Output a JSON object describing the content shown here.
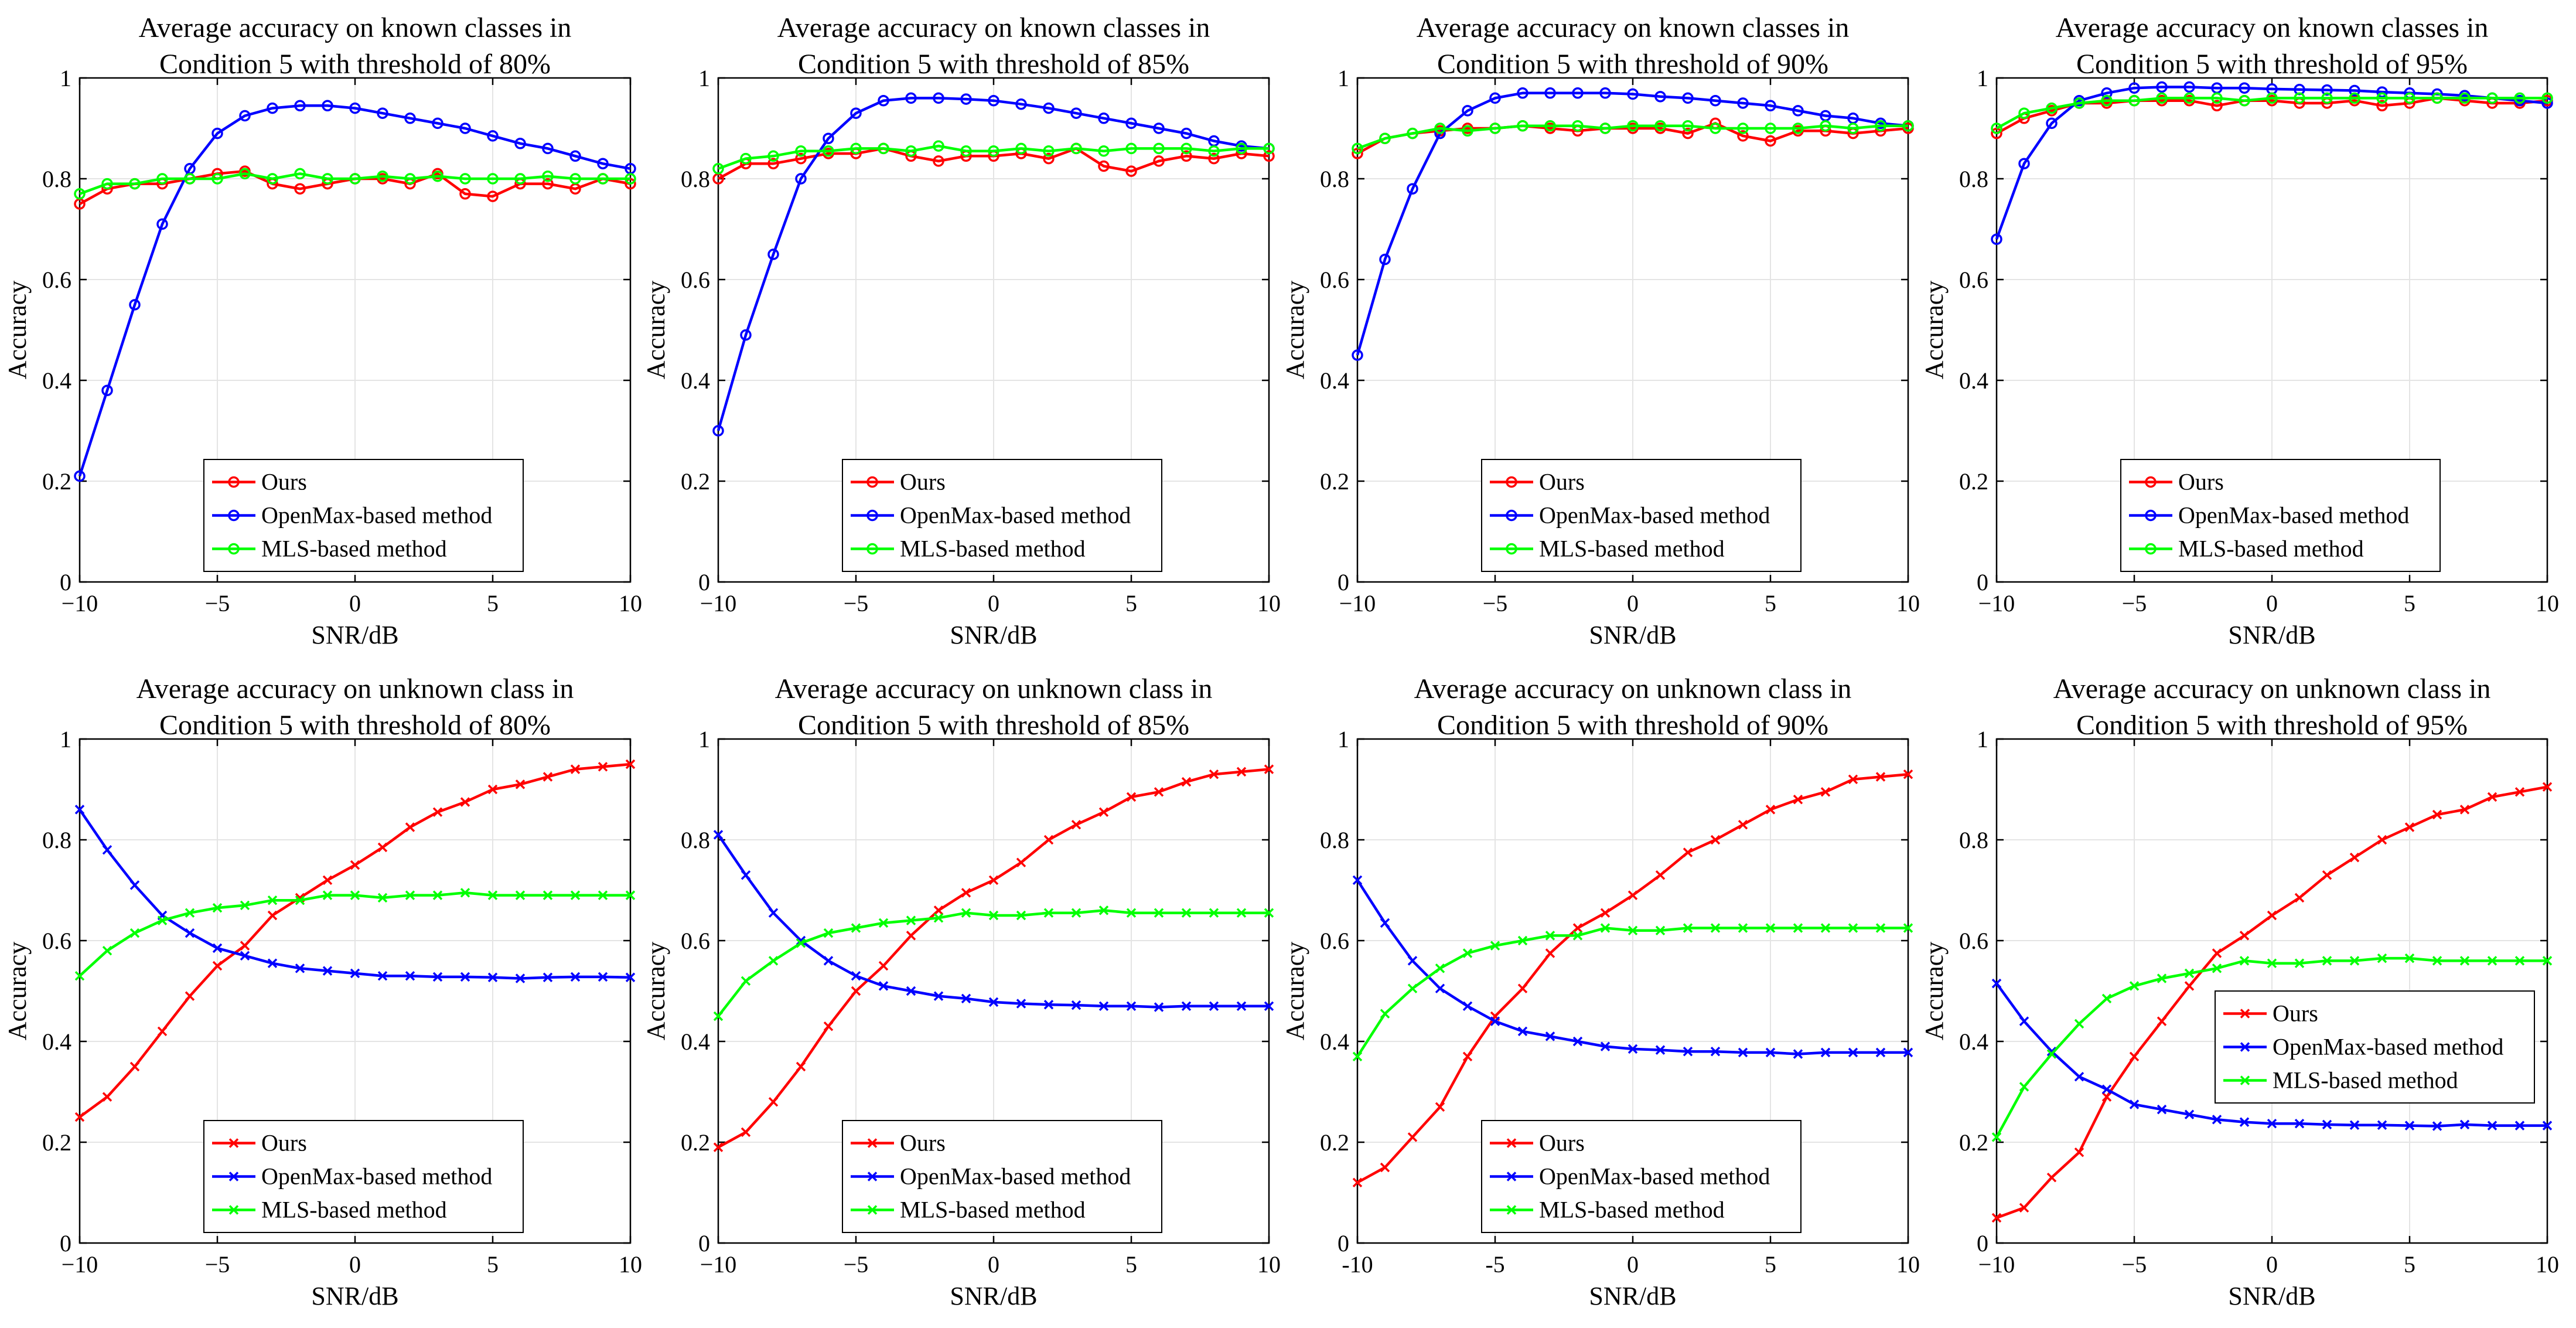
{
  "colors": {
    "ours": "#ff0000",
    "openmax": "#0000ff",
    "mls": "#00ff00",
    "grid": "#e4e4e4",
    "axis": "#000000"
  },
  "chart_data": [
    {
      "type": "line",
      "row": 0,
      "col": 0,
      "marker": "circle",
      "title": [
        "Average accuracy on known classes in",
        "Condition 5 with threshold of 80%"
      ],
      "xlabel": "SNR/dB",
      "ylabel": "Accuracy",
      "xlim": [
        -10,
        10
      ],
      "ylim": [
        0,
        1
      ],
      "grid": true,
      "legend": "bottom-center",
      "xticks": [
        "−10",
        "−5",
        "0",
        "5",
        "10"
      ],
      "yticks": [
        "0",
        "0.2",
        "0.4",
        "0.6",
        "0.8",
        "1"
      ],
      "x": [
        -10,
        -9,
        -8,
        -7,
        -6,
        -5,
        -4,
        -3,
        -2,
        -1,
        0,
        1,
        2,
        3,
        4,
        5,
        6,
        7,
        8,
        9,
        10
      ],
      "series": [
        {
          "name": "Ours",
          "color": "#ff0000",
          "values": [
            0.75,
            0.78,
            0.79,
            0.79,
            0.8,
            0.81,
            0.815,
            0.79,
            0.78,
            0.79,
            0.8,
            0.8,
            0.79,
            0.81,
            0.77,
            0.765,
            0.79,
            0.79,
            0.78,
            0.8,
            0.79
          ]
        },
        {
          "name": "OpenMax-based method",
          "color": "#0000ff",
          "values": [
            0.21,
            0.38,
            0.55,
            0.71,
            0.82,
            0.89,
            0.925,
            0.94,
            0.945,
            0.945,
            0.94,
            0.93,
            0.92,
            0.91,
            0.9,
            0.885,
            0.87,
            0.86,
            0.845,
            0.83,
            0.82
          ]
        },
        {
          "name": "MLS-based method",
          "color": "#00ff00",
          "values": [
            0.77,
            0.79,
            0.79,
            0.8,
            0.8,
            0.8,
            0.81,
            0.8,
            0.81,
            0.8,
            0.8,
            0.805,
            0.8,
            0.805,
            0.8,
            0.8,
            0.8,
            0.805,
            0.8,
            0.8,
            0.8
          ]
        }
      ]
    },
    {
      "type": "line",
      "row": 0,
      "col": 1,
      "marker": "circle",
      "title": [
        "Average accuracy on known classes in",
        "Condition 5 with threshold of 85%"
      ],
      "xlabel": "SNR/dB",
      "ylabel": "Accuracy",
      "xlim": [
        -10,
        10
      ],
      "ylim": [
        0,
        1
      ],
      "grid": true,
      "legend": "bottom-center",
      "xticks": [
        "−10",
        "−5",
        "0",
        "5",
        "10"
      ],
      "yticks": [
        "0",
        "0.2",
        "0.4",
        "0.6",
        "0.8",
        "1"
      ],
      "x": [
        -10,
        -9,
        -8,
        -7,
        -6,
        -5,
        -4,
        -3,
        -2,
        -1,
        0,
        1,
        2,
        3,
        4,
        5,
        6,
        7,
        8,
        9,
        10
      ],
      "series": [
        {
          "name": "Ours",
          "color": "#ff0000",
          "values": [
            0.8,
            0.83,
            0.83,
            0.84,
            0.85,
            0.85,
            0.86,
            0.845,
            0.835,
            0.845,
            0.845,
            0.85,
            0.84,
            0.86,
            0.825,
            0.815,
            0.835,
            0.845,
            0.84,
            0.85,
            0.845
          ]
        },
        {
          "name": "OpenMax-based method",
          "color": "#0000ff",
          "values": [
            0.3,
            0.49,
            0.65,
            0.8,
            0.88,
            0.93,
            0.955,
            0.96,
            0.96,
            0.958,
            0.955,
            0.948,
            0.94,
            0.93,
            0.92,
            0.91,
            0.9,
            0.89,
            0.875,
            0.865,
            0.86
          ]
        },
        {
          "name": "MLS-based method",
          "color": "#00ff00",
          "values": [
            0.82,
            0.84,
            0.845,
            0.855,
            0.855,
            0.86,
            0.86,
            0.855,
            0.865,
            0.855,
            0.855,
            0.86,
            0.855,
            0.86,
            0.855,
            0.86,
            0.86,
            0.86,
            0.855,
            0.86,
            0.86
          ]
        }
      ]
    },
    {
      "type": "line",
      "row": 0,
      "col": 2,
      "marker": "circle",
      "title": [
        "Average accuracy on known classes in",
        "Condition 5 with threshold of 90%"
      ],
      "xlabel": "SNR/dB",
      "ylabel": "Accuracy",
      "xlim": [
        -10,
        10
      ],
      "ylim": [
        0,
        1
      ],
      "grid": true,
      "legend": "bottom-center",
      "xticks": [
        "−10",
        "−5",
        "0",
        "5",
        "10"
      ],
      "yticks": [
        "0",
        "0.2",
        "0.4",
        "0.6",
        "0.8",
        "1"
      ],
      "x": [
        -10,
        -9,
        -8,
        -7,
        -6,
        -5,
        -4,
        -3,
        -2,
        -1,
        0,
        1,
        2,
        3,
        4,
        5,
        6,
        7,
        8,
        9,
        10
      ],
      "series": [
        {
          "name": "Ours",
          "color": "#ff0000",
          "values": [
            0.85,
            0.88,
            0.89,
            0.895,
            0.9,
            0.9,
            0.905,
            0.9,
            0.895,
            0.9,
            0.9,
            0.9,
            0.89,
            0.91,
            0.885,
            0.875,
            0.895,
            0.895,
            0.89,
            0.895,
            0.9
          ]
        },
        {
          "name": "OpenMax-based method",
          "color": "#0000ff",
          "values": [
            0.45,
            0.64,
            0.78,
            0.89,
            0.935,
            0.96,
            0.97,
            0.97,
            0.97,
            0.97,
            0.968,
            0.963,
            0.96,
            0.955,
            0.95,
            0.945,
            0.935,
            0.925,
            0.92,
            0.91,
            0.905
          ]
        },
        {
          "name": "MLS-based method",
          "color": "#00ff00",
          "values": [
            0.86,
            0.88,
            0.89,
            0.9,
            0.895,
            0.9,
            0.905,
            0.905,
            0.905,
            0.9,
            0.905,
            0.905,
            0.905,
            0.9,
            0.9,
            0.9,
            0.9,
            0.905,
            0.9,
            0.905,
            0.905
          ]
        }
      ]
    },
    {
      "type": "line",
      "row": 0,
      "col": 3,
      "marker": "circle",
      "title": [
        "Average accuracy on known classes in",
        "Condition 5 with threshold of 95%"
      ],
      "xlabel": "SNR/dB",
      "ylabel": "Accuracy",
      "xlim": [
        -10,
        10
      ],
      "ylim": [
        0,
        1
      ],
      "grid": true,
      "legend": "bottom-center",
      "xticks": [
        "−10",
        "−5",
        "0",
        "5",
        "10"
      ],
      "yticks": [
        "0",
        "0.2",
        "0.4",
        "0.6",
        "0.8",
        "1"
      ],
      "x": [
        -10,
        -9,
        -8,
        -7,
        -6,
        -5,
        -4,
        -3,
        -2,
        -1,
        0,
        1,
        2,
        3,
        4,
        5,
        6,
        7,
        8,
        9,
        10
      ],
      "series": [
        {
          "name": "Ours",
          "color": "#ff0000",
          "values": [
            0.89,
            0.92,
            0.935,
            0.95,
            0.95,
            0.955,
            0.955,
            0.955,
            0.945,
            0.955,
            0.955,
            0.95,
            0.95,
            0.955,
            0.945,
            0.95,
            0.96,
            0.955,
            0.95,
            0.95,
            0.955
          ]
        },
        {
          "name": "OpenMax-based method",
          "color": "#0000ff",
          "values": [
            0.68,
            0.83,
            0.91,
            0.955,
            0.97,
            0.98,
            0.982,
            0.982,
            0.98,
            0.98,
            0.978,
            0.977,
            0.976,
            0.975,
            0.972,
            0.97,
            0.968,
            0.965,
            0.96,
            0.955,
            0.95
          ]
        },
        {
          "name": "MLS-based method",
          "color": "#00ff00",
          "values": [
            0.9,
            0.93,
            0.94,
            0.95,
            0.955,
            0.955,
            0.96,
            0.96,
            0.96,
            0.955,
            0.96,
            0.96,
            0.96,
            0.96,
            0.96,
            0.96,
            0.96,
            0.96,
            0.96,
            0.96,
            0.96
          ]
        }
      ]
    },
    {
      "type": "line",
      "row": 1,
      "col": 0,
      "marker": "x",
      "title": [
        "Average accuracy on unknown class in",
        "Condition 5 with threshold of 80%"
      ],
      "xlabel": "SNR/dB",
      "ylabel": "Accuracy",
      "xlim": [
        -10,
        10
      ],
      "ylim": [
        0,
        1
      ],
      "grid": true,
      "legend": "bottom-center",
      "xticks": [
        "−10",
        "−5",
        "0",
        "5",
        "10"
      ],
      "yticks": [
        "0",
        "0.2",
        "0.4",
        "0.6",
        "0.8",
        "1"
      ],
      "x": [
        -10,
        -9,
        -8,
        -7,
        -6,
        -5,
        -4,
        -3,
        -2,
        -1,
        0,
        1,
        2,
        3,
        4,
        5,
        6,
        7,
        8,
        9,
        10
      ],
      "series": [
        {
          "name": "Ours",
          "color": "#ff0000",
          "values": [
            0.25,
            0.29,
            0.35,
            0.42,
            0.49,
            0.55,
            0.59,
            0.65,
            0.685,
            0.72,
            0.75,
            0.785,
            0.825,
            0.855,
            0.875,
            0.9,
            0.91,
            0.925,
            0.94,
            0.945,
            0.95
          ]
        },
        {
          "name": "OpenMax-based method",
          "color": "#0000ff",
          "values": [
            0.86,
            0.78,
            0.71,
            0.65,
            0.615,
            0.585,
            0.57,
            0.555,
            0.545,
            0.54,
            0.535,
            0.53,
            0.53,
            0.528,
            0.528,
            0.527,
            0.525,
            0.527,
            0.528,
            0.528,
            0.527
          ]
        },
        {
          "name": "MLS-based method",
          "color": "#00ff00",
          "values": [
            0.53,
            0.58,
            0.615,
            0.64,
            0.655,
            0.665,
            0.67,
            0.68,
            0.68,
            0.69,
            0.69,
            0.685,
            0.69,
            0.69,
            0.695,
            0.69,
            0.69,
            0.69,
            0.69,
            0.69,
            0.69
          ]
        }
      ]
    },
    {
      "type": "line",
      "row": 1,
      "col": 1,
      "marker": "x",
      "title": [
        "Average accuracy on unknown class in",
        "Condition 5 with threshold of 85%"
      ],
      "xlabel": "SNR/dB",
      "ylabel": "Accuracy",
      "xlim": [
        -10,
        10
      ],
      "ylim": [
        0,
        1
      ],
      "grid": true,
      "legend": "bottom-center",
      "xticks": [
        "−10",
        "−5",
        "0",
        "5",
        "10"
      ],
      "yticks": [
        "0",
        "0.2",
        "0.4",
        "0.6",
        "0.8",
        "1"
      ],
      "x": [
        -10,
        -9,
        -8,
        -7,
        -6,
        -5,
        -4,
        -3,
        -2,
        -1,
        0,
        1,
        2,
        3,
        4,
        5,
        6,
        7,
        8,
        9,
        10
      ],
      "series": [
        {
          "name": "Ours",
          "color": "#ff0000",
          "values": [
            0.19,
            0.22,
            0.28,
            0.35,
            0.43,
            0.5,
            0.55,
            0.61,
            0.66,
            0.695,
            0.72,
            0.755,
            0.8,
            0.83,
            0.855,
            0.885,
            0.895,
            0.915,
            0.93,
            0.935,
            0.94
          ]
        },
        {
          "name": "OpenMax-based method",
          "color": "#0000ff",
          "values": [
            0.81,
            0.73,
            0.655,
            0.6,
            0.56,
            0.53,
            0.51,
            0.5,
            0.49,
            0.485,
            0.478,
            0.475,
            0.473,
            0.472,
            0.47,
            0.47,
            0.468,
            0.47,
            0.47,
            0.47,
            0.47
          ]
        },
        {
          "name": "MLS-based method",
          "color": "#00ff00",
          "values": [
            0.45,
            0.52,
            0.56,
            0.595,
            0.615,
            0.625,
            0.635,
            0.64,
            0.645,
            0.655,
            0.65,
            0.65,
            0.655,
            0.655,
            0.66,
            0.655,
            0.655,
            0.655,
            0.655,
            0.655,
            0.655
          ]
        }
      ]
    },
    {
      "type": "line",
      "row": 1,
      "col": 2,
      "marker": "x",
      "title": [
        "Average accuracy on unknown class in",
        "Condition 5 with threshold of 90%"
      ],
      "xlabel": "SNR/dB",
      "ylabel": "Accuracy",
      "xlim": [
        -10,
        10
      ],
      "ylim": [
        0,
        1
      ],
      "grid": true,
      "legend": "bottom-center",
      "xticks": [
        "-10",
        "-5",
        "0",
        "5",
        "10"
      ],
      "yticks": [
        "0",
        "0.2",
        "0.4",
        "0.6",
        "0.8",
        "1"
      ],
      "x": [
        -10,
        -9,
        -8,
        -7,
        -6,
        -5,
        -4,
        -3,
        -2,
        -1,
        0,
        1,
        2,
        3,
        4,
        5,
        6,
        7,
        8,
        9,
        10
      ],
      "series": [
        {
          "name": "Ours",
          "color": "#ff0000",
          "values": [
            0.12,
            0.15,
            0.21,
            0.27,
            0.37,
            0.45,
            0.505,
            0.575,
            0.625,
            0.655,
            0.69,
            0.73,
            0.775,
            0.8,
            0.83,
            0.86,
            0.88,
            0.895,
            0.92,
            0.925,
            0.93
          ]
        },
        {
          "name": "OpenMax-based method",
          "color": "#0000ff",
          "values": [
            0.72,
            0.635,
            0.56,
            0.505,
            0.47,
            0.44,
            0.42,
            0.41,
            0.4,
            0.39,
            0.385,
            0.383,
            0.38,
            0.38,
            0.378,
            0.378,
            0.375,
            0.378,
            0.378,
            0.378,
            0.378
          ]
        },
        {
          "name": "MLS-based method",
          "color": "#00ff00",
          "values": [
            0.37,
            0.455,
            0.505,
            0.545,
            0.575,
            0.59,
            0.6,
            0.61,
            0.61,
            0.625,
            0.62,
            0.62,
            0.625,
            0.625,
            0.625,
            0.625,
            0.625,
            0.625,
            0.625,
            0.625,
            0.625
          ]
        }
      ]
    },
    {
      "type": "line",
      "row": 1,
      "col": 3,
      "marker": "x",
      "title": [
        "Average accuracy on unknown class in",
        "Condition 5 with threshold of 95%"
      ],
      "xlabel": "SNR/dB",
      "ylabel": "Accuracy",
      "xlim": [
        -10,
        10
      ],
      "ylim": [
        0,
        1
      ],
      "grid": true,
      "legend": "center-right",
      "xticks": [
        "−10",
        "−5",
        "0",
        "5",
        "10"
      ],
      "yticks": [
        "0",
        "0.2",
        "0.4",
        "0.6",
        "0.8",
        "1"
      ],
      "x": [
        -10,
        -9,
        -8,
        -7,
        -6,
        -5,
        -4,
        -3,
        -2,
        -1,
        0,
        1,
        2,
        3,
        4,
        5,
        6,
        7,
        8,
        9,
        10
      ],
      "series": [
        {
          "name": "Ours",
          "color": "#ff0000",
          "values": [
            0.05,
            0.07,
            0.13,
            0.18,
            0.29,
            0.37,
            0.44,
            0.51,
            0.575,
            0.61,
            0.65,
            0.685,
            0.73,
            0.765,
            0.8,
            0.825,
            0.85,
            0.86,
            0.885,
            0.895,
            0.905
          ]
        },
        {
          "name": "OpenMax-based method",
          "color": "#0000ff",
          "values": [
            0.515,
            0.44,
            0.38,
            0.33,
            0.305,
            0.275,
            0.265,
            0.255,
            0.245,
            0.24,
            0.237,
            0.237,
            0.235,
            0.234,
            0.234,
            0.233,
            0.232,
            0.235,
            0.233,
            0.233,
            0.233
          ]
        },
        {
          "name": "MLS-based method",
          "color": "#00ff00",
          "values": [
            0.21,
            0.31,
            0.375,
            0.435,
            0.485,
            0.51,
            0.525,
            0.535,
            0.545,
            0.56,
            0.555,
            0.555,
            0.56,
            0.56,
            0.565,
            0.565,
            0.56,
            0.56,
            0.56,
            0.56,
            0.56
          ]
        }
      ]
    }
  ]
}
